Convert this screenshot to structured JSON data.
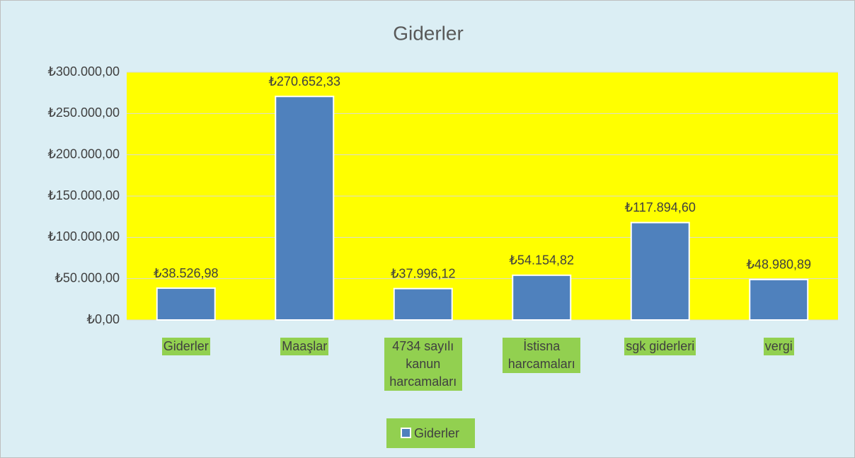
{
  "chart_data": {
    "type": "bar",
    "title": "Giderler",
    "categories": [
      "Giderler",
      "Maaşlar",
      "4734 sayılı kanun harcamaları",
      "İstisna harcamaları",
      "sgk giderleri",
      "vergi"
    ],
    "series": [
      {
        "name": "Giderler",
        "color": "#4f81bd",
        "values": [
          38526.98,
          270652.33,
          37996.12,
          54154.82,
          117894.6,
          48980.89
        ],
        "value_labels": [
          "₺38.526,98",
          "₺270.652,33",
          "₺37.996,12",
          "₺54.154,82",
          "₺117.894,60",
          "₺48.980,89"
        ]
      }
    ],
    "ylim": [
      0,
      300000
    ],
    "yticks": [
      {
        "value": 0,
        "label": "₺0,00"
      },
      {
        "value": 50000,
        "label": "₺50.000,00"
      },
      {
        "value": 100000,
        "label": "₺100.000,00"
      },
      {
        "value": 150000,
        "label": "₺150.000,00"
      },
      {
        "value": 200000,
        "label": "₺200.000,00"
      },
      {
        "value": 250000,
        "label": "₺250.000,00"
      },
      {
        "value": 300000,
        "label": "₺300.000,00"
      }
    ],
    "grid": true,
    "plot_background": "#ffff00",
    "legend": "bottom"
  }
}
